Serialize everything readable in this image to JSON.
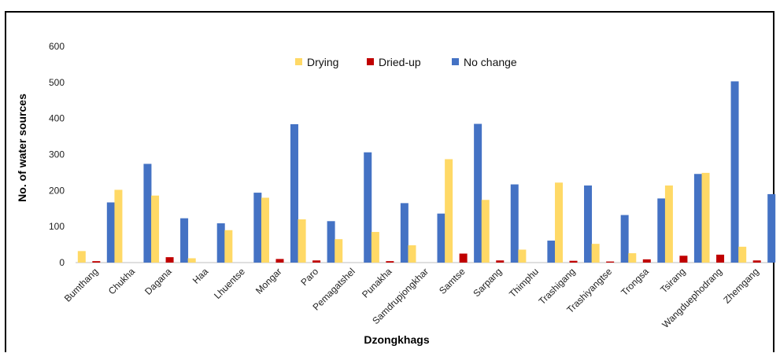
{
  "chart_data": {
    "type": "bar",
    "xlabel": "Dzongkhags",
    "ylabel": "No. of water sources",
    "ylim": [
      0,
      600
    ],
    "yticks": [
      0,
      100,
      200,
      300,
      400,
      500,
      600
    ],
    "grid": false,
    "legend_position": "top",
    "categories": [
      "Bumthang",
      "Chukha",
      "Dagana",
      "Haa",
      "Lhuentse",
      "Mongar",
      "Paro",
      "Pemagatshel",
      "Punakha",
      "Samdrupjongkhar",
      "Samtse",
      "Sarpang",
      "Thimphu",
      "Trashigang",
      "Trashiyangtse",
      "Trongsa",
      "Tsirang",
      "Wangduephodrang",
      "Zhemgang"
    ],
    "series": [
      {
        "name": "Drying",
        "color": "#FFD966",
        "values": [
          32,
          202,
          186,
          12,
          90,
          180,
          120,
          65,
          85,
          48,
          287,
          174,
          36,
          222,
          52,
          26,
          214,
          249,
          44
        ]
      },
      {
        "name": "Dried-up",
        "color": "#C00000",
        "values": [
          4,
          0,
          15,
          0,
          0,
          10,
          6,
          0,
          4,
          0,
          25,
          6,
          0,
          5,
          3,
          9,
          19,
          22,
          6
        ]
      },
      {
        "name": "No change",
        "color": "#4472C4",
        "values": [
          167,
          274,
          123,
          109,
          194,
          384,
          115,
          306,
          165,
          136,
          385,
          217,
          61,
          214,
          132,
          178,
          246,
          503,
          190
        ]
      }
    ]
  }
}
